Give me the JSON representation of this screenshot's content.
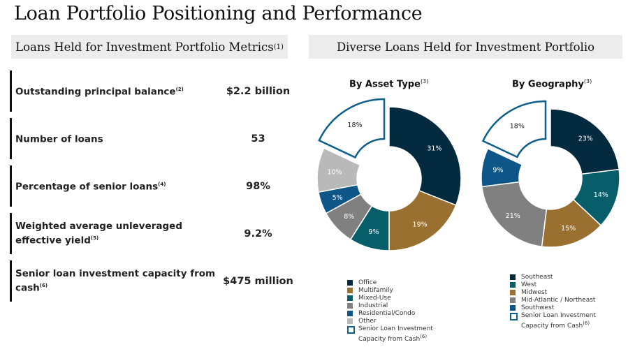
{
  "title": "Loan Portfolio Positioning and Performance",
  "left_panel": {
    "heading": "Loans Held for Investment Portfolio Metrics",
    "heading_note": "(1)",
    "metrics": [
      {
        "label": "Outstanding principal balance",
        "note": "(2)",
        "value": "$2.2 billion"
      },
      {
        "label": "Number of loans",
        "note": "",
        "value": "53"
      },
      {
        "label": "Percentage of senior loans",
        "note": "(4)",
        "value": "98%"
      },
      {
        "label": "Weighted average unleveraged effective yield",
        "note": "(5)",
        "value": "9.2%"
      },
      {
        "label": "Senior loan investment capacity from cash",
        "note": "(6)",
        "value": "$475 million"
      }
    ]
  },
  "right_panel": {
    "heading": "Diverse Loans Held for Investment Portfolio"
  },
  "chart_data": [
    {
      "type": "pie",
      "variant": "donut",
      "title": "By Asset Type",
      "title_note": "(3)",
      "unit": "%",
      "legend_position": "bottom",
      "slices": [
        {
          "label": "Office",
          "value": 31,
          "color": "#042a40",
          "exploded": false
        },
        {
          "label": "Multifamily",
          "value": 19,
          "color": "#9a7030",
          "exploded": false
        },
        {
          "label": "Mixed-Use",
          "value": 9,
          "color": "#075e6a",
          "exploded": false
        },
        {
          "label": "Industrial",
          "value": 8,
          "color": "#808080",
          "exploded": false
        },
        {
          "label": "Residential/Condo",
          "value": 5,
          "color": "#0e5688",
          "exploded": false
        },
        {
          "label": "Other",
          "value": 10,
          "color": "#b9b9b9",
          "exploded": false
        },
        {
          "label": "Senior Loan Investment Capacity from Cash",
          "note": "(6)",
          "value": 18,
          "color": "#ffffff",
          "outline": "#0e5f8a",
          "exploded": true
        }
      ]
    },
    {
      "type": "pie",
      "variant": "donut",
      "title": "By Geography",
      "title_note": "(3)",
      "unit": "%",
      "legend_position": "bottom",
      "slices": [
        {
          "label": "Southeast",
          "value": 23,
          "color": "#042a40",
          "exploded": false
        },
        {
          "label": "West",
          "value": 14,
          "color": "#075e6a",
          "exploded": false
        },
        {
          "label": "Midwest",
          "value": 15,
          "color": "#9a7030",
          "exploded": false
        },
        {
          "label": "Mid-Atlantic / Northeast",
          "value": 21,
          "color": "#808080",
          "exploded": false
        },
        {
          "label": "Southwest",
          "value": 9,
          "color": "#0e5688",
          "exploded": false
        },
        {
          "label": "Senior Loan Investment Capacity from Cash",
          "note": "(6)",
          "value": 18,
          "color": "#ffffff",
          "outline": "#0e5f8a",
          "exploded": true
        }
      ]
    }
  ]
}
